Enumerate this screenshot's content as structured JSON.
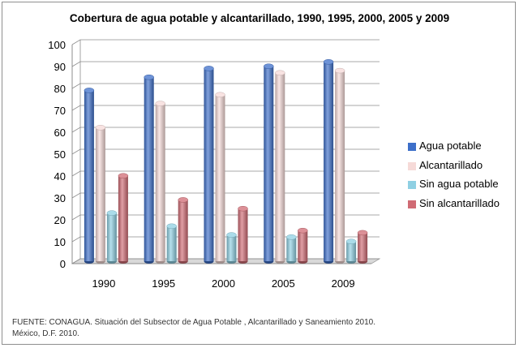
{
  "chart_data": {
    "type": "bar",
    "title": "Cobertura de agua potable y alcantarillado, 1990, 1995, 2000, 2005 y 2009",
    "categories": [
      "1990",
      "1995",
      "2000",
      "2005",
      "2009"
    ],
    "series": [
      {
        "name": "Agua potable",
        "values": [
          78,
          84,
          88,
          89,
          91
        ],
        "color": "#3d6fc9"
      },
      {
        "name": "Alcantarillado",
        "values": [
          61,
          72,
          76,
          86,
          87
        ],
        "color": "#f6dad8"
      },
      {
        "name": "Sin agua potable",
        "values": [
          22,
          16,
          12,
          11,
          9
        ],
        "color": "#8fd0e3"
      },
      {
        "name": "Sin alcantarillado",
        "values": [
          39,
          28,
          24,
          14,
          13
        ],
        "color": "#d06b74"
      }
    ],
    "ylim": [
      0,
      100
    ],
    "yticks": [
      "0",
      "10",
      "20",
      "30",
      "40",
      "50",
      "60",
      "70",
      "80",
      "90",
      "100"
    ],
    "xlabel": "",
    "ylabel": "",
    "grid": true,
    "legend_position": "right"
  },
  "source_note": {
    "line1": "FUENTE:  CONAGUA. Situación del Subsector de Agua Potable , Alcantarillado y Saneamiento 2010.",
    "line2": "México, D.F. 2010."
  }
}
